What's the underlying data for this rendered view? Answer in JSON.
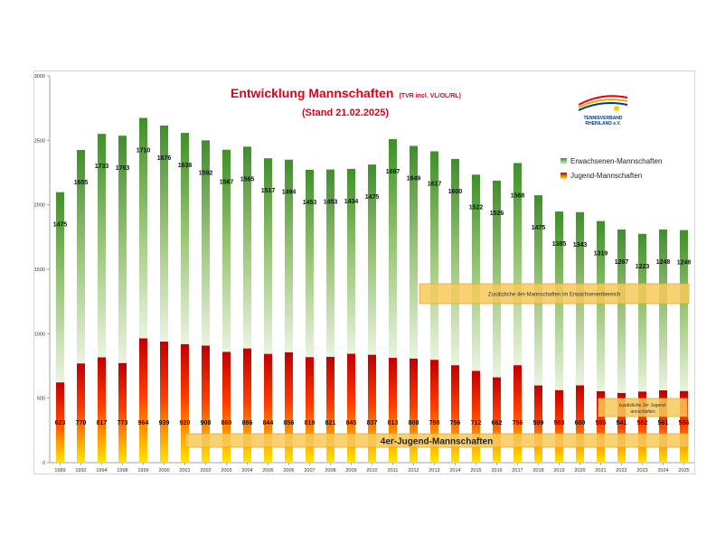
{
  "title": "Entwicklung Mannschaften",
  "title_note": "(TVR incl. VL/OL/RL)",
  "subtitle": "(Stand 21.02.2025)",
  "logo_text": "TENNISVERBAND RHEINLAND e.V.",
  "annotations": {
    "adult_4er": "Zusätzliche 4er-Mannschaften im Erwachsenenbereich",
    "youth_2er": "zusätzliche 2er Jugend-Mannschaften",
    "youth_4er": "4er-Jugend-Mannschaften"
  },
  "colors": {
    "adult_top": "#3f8f2a",
    "adult_bottom": "#eaf3e0",
    "youth_top": "#c00000",
    "youth_bottom": "#ffe600",
    "title": "#e0001a",
    "annotation_fill": "#f7c95a"
  },
  "chart_data": {
    "type": "bar",
    "stacked": true,
    "categories": [
      "1989",
      "1992",
      "1994",
      "1998",
      "1999",
      "2000",
      "2001",
      "2002",
      "2003",
      "2004",
      "2005",
      "2006",
      "2007",
      "2008",
      "2009",
      "2010",
      "2011",
      "2012",
      "2013",
      "2014",
      "2015",
      "2016",
      "2017",
      "2018",
      "2019",
      "2020",
      "2021",
      "2022",
      "2023",
      "2024",
      "2025"
    ],
    "series": [
      {
        "name": "Jugend-Mannschaften",
        "values": [
          623,
          770,
          817,
          773,
          964,
          939,
          920,
          908,
          860,
          886,
          844,
          856,
          819,
          821,
          845,
          837,
          813,
          808,
          798,
          756,
          712,
          662,
          756,
          599,
          563,
          600,
          555,
          541,
          552,
          561,
          556
        ]
      },
      {
        "name": "Erwachsenen-Mannschaften",
        "values": [
          1475,
          1655,
          1733,
          1763,
          1710,
          1676,
          1638,
          1592,
          1567,
          1565,
          1517,
          1494,
          1453,
          1453,
          1434,
          1475,
          1697,
          1649,
          1617,
          1600,
          1522,
          1526,
          1568,
          1475,
          1385,
          1343,
          1319,
          1267,
          1223,
          1248,
          1248
        ]
      }
    ],
    "ylim": [
      0,
      3000
    ],
    "yticks": [
      0,
      500,
      1000,
      1500,
      2000,
      2500,
      3000
    ],
    "grid": false,
    "legend": "right"
  }
}
